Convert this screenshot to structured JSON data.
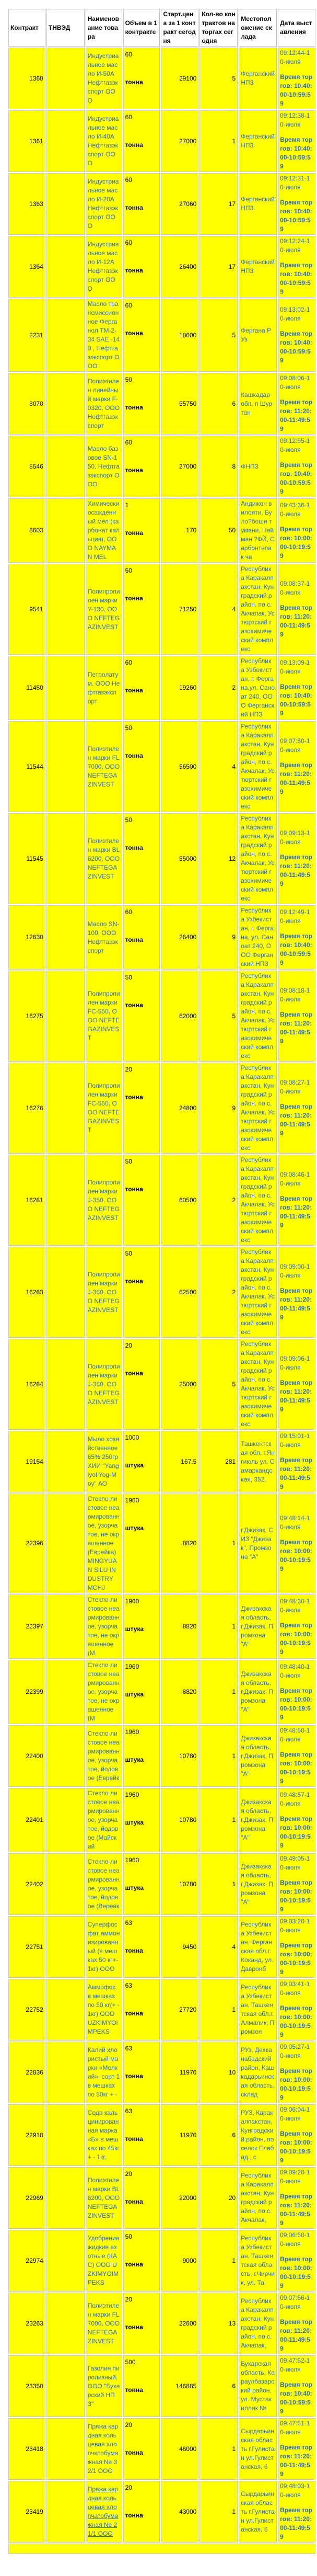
{
  "colors": {
    "cell_background": "#ffff00",
    "header_background": "#ffffff",
    "link_blue": "#2d6fc2",
    "text": "#000000",
    "grid_border": "#c6c6c6"
  },
  "table": {
    "headers": [
      "Контракт",
      "ТНВЭД",
      "Наименование товара",
      "Объем в 1 контракте",
      "Старт.цена за 1 контракт сегодня",
      "Кол-во контрактов на торгах сегодня",
      "Местоположение склада",
      "Дата выставления"
    ],
    "trading_time_label": "Время торгов:",
    "rows": [
      {
        "contract": "1360",
        "tnved": "",
        "name": "Индустриальное масло И-50А Нефтгазэкспорт ООО",
        "volume": "60",
        "unit": "тонна",
        "price": "29100",
        "qty": "5",
        "location": "Ферганский НПЗ",
        "listed": "09:12:44-10-июля",
        "hours": "10:40:00-10:59:59"
      },
      {
        "contract": "1361",
        "tnved": "",
        "name": "Индустриальное масло И-40А Нефтгазэкспорт ООО",
        "volume": "60",
        "unit": "тонна",
        "price": "27000",
        "qty": "1",
        "location": "Ферганский НПЗ",
        "listed": "09:12:38-10-июля",
        "hours": "10:40:00-10:59:59"
      },
      {
        "contract": "1363",
        "tnved": "",
        "name": "Индустриальное масло И-20А Нефтгазэкспорт ООО",
        "volume": "60",
        "unit": "тонна",
        "price": "27060",
        "qty": "17",
        "location": "Ферганский НПЗ",
        "listed": "09:12:31-10-июля",
        "hours": "10:40:00-10:59:59"
      },
      {
        "contract": "1364",
        "tnved": "",
        "name": "Индустриальное масло И-12А Нефтгазэкспорт ООО",
        "volume": "60",
        "unit": "тонна",
        "price": "26400",
        "qty": "17",
        "location": "Ферганский НПЗ",
        "listed": "09:12:24-10-июля",
        "hours": "10:40:00-10:59:59"
      },
      {
        "contract": "2231",
        "tnved": "",
        "name": "Масло трансмиссионное Ферганол ТМ-2-34 SAE -140 , Нефтгазэкспорт ООО",
        "volume": "60",
        "unit": "тонна",
        "price": "18600",
        "qty": "5",
        "location": "Фергана Р Уз",
        "listed": "09:13:02-10-июля",
        "hours": "10:40:00-10:59:59"
      },
      {
        "contract": "3070",
        "tnved": "",
        "name": "Полиэтилен линейный марки F-0320, ООО Нефтгазэкспорт",
        "volume": "50",
        "unit": "тонна",
        "price": "55750",
        "qty": "6",
        "location": "Кашкадар обл, п Шуртан",
        "listed": "09:08:06-10-июля",
        "hours": "11:20:00-11:49:59"
      },
      {
        "contract": "5546",
        "tnved": "",
        "name": "Масло базовое SN-150, Нефтгазэкспорт ООО",
        "volume": "60",
        "unit": "тонна",
        "price": "27000",
        "qty": "8",
        "location": "ФНПЗ",
        "listed": "09:12:55-10-июля",
        "hours": "10:40:00-10:59:59"
      },
      {
        "contract": "8603",
        "tnved": "",
        "name": "Химически осажденный мел (карбонат кальция), ООО NAYMAN MEL",
        "volume": "1",
        "unit": "тонна",
        "price": "170",
        "qty": "50",
        "location": "Андижон вилояти, Було?боши тумани, Найман ?ФЙ, Сарбонтепа к ча",
        "listed": "09:43:36-10-июля",
        "hours": "10:00:00-10:19:59"
      },
      {
        "contract": "9541",
        "tnved": "",
        "name": "Полипропилен марки Y-130, ООО NEFTEGAZINVEST",
        "volume": "50",
        "unit": "тонна",
        "price": "71250",
        "qty": "4",
        "location": "Республика Каракалпакстан, Кунградский район, по с.Акчалак, Устюртский газохимический комплекс",
        "listed": "09:08:37-10-июля",
        "hours": "11:20:00-11:49:59"
      },
      {
        "contract": "11450",
        "tnved": "",
        "name": "Петролатум, ООО Нефтгазэкспорт",
        "volume": "60",
        "unit": "тонна",
        "price": "19260",
        "qty": "2",
        "location": "Республика Узбекистан, г. Фергана,ул. Саноат 240, ООО Ферганский НПЗ",
        "listed": "09:13:09-10-июля",
        "hours": "10:40:00-10:59:59"
      },
      {
        "contract": "11544",
        "tnved": "",
        "name": "Полиэтилен марки FL7000, ООО NEFTEGAZINVEST",
        "volume": "50",
        "unit": "тонна",
        "price": "56500",
        "qty": "4",
        "location": "Республика Каракалпакстан, Кунградский район, по с.Акчалак, Устюртский газохимический комплекс",
        "listed": "09:07:50-10-июля",
        "hours": "11:20:00-11:49:59"
      },
      {
        "contract": "11545",
        "tnved": "",
        "name": "Полиэтилен марки BL6200, ООО NEFTEGAZINVEST",
        "volume": "50",
        "unit": "тонна",
        "price": "55000",
        "qty": "12",
        "location": "Республика Каракалпакстан, Кунградский район, по с.Акчалак, Устюртский газохимический комплекс",
        "listed": "09:09:13-10-июля",
        "hours": "11:20:00-11:49:59"
      },
      {
        "contract": "12630",
        "tnved": "",
        "name": "Масло SN-100, ООО Нефтгазэкспорт",
        "volume": "60",
        "unit": "тонна",
        "price": "26400",
        "qty": "9",
        "location": "Республика Узбекистан, г. Фергана, ул. Саноат 240, ООО Ферганский НПЗ",
        "listed": "09:12:49-10-июля",
        "hours": "10:40:00-10:59:59"
      },
      {
        "contract": "16275",
        "tnved": "",
        "name": "Полипропилен марки FC-550, ООО NEFTEGAZINVEST",
        "volume": "50",
        "unit": "тонна",
        "price": "62000",
        "qty": "5",
        "location": "Республика Каракалпакстан, Кунградский район, по с. Акчалак, Устюртский газохимический комплекс",
        "listed": "09:08:18-10-июля",
        "hours": "11:20:00-11:49:59"
      },
      {
        "contract": "16276",
        "tnved": "",
        "name": "Полипропилен марки FC-550, ООО NEFTEGAZINVEST",
        "volume": "20",
        "unit": "тонна",
        "price": "24800",
        "qty": "9",
        "location": "Республика Каракалпакстан, Кунградский район, по с. Акчалак, Устюртский газохимический комплекс",
        "listed": "09:08:27-10-июля",
        "hours": "11:20:00-11:49:59"
      },
      {
        "contract": "16281",
        "tnved": "",
        "name": "Полипропилен марки J-350, ООО NEFTEGAZINVEST",
        "volume": "50",
        "unit": "тонна",
        "price": "60500",
        "qty": "2",
        "location": "Республика Каракалпакстан, Кунградский район, по с. Акчалак, Устюртский газохимический комплекс",
        "listed": "09:08:46-10-июля",
        "hours": "11:20:00-11:49:59"
      },
      {
        "contract": "16283",
        "tnved": "",
        "name": "Полипропилен марки J-360, ООО NEFTEGAZINVEST",
        "volume": "50",
        "unit": "тонна",
        "price": "62500",
        "qty": "2",
        "location": "Республика Каракалпакстан, Кунградский район, по с. Акчалак, Устюртский газохимический комплекс",
        "listed": "09:09:00-10-июля",
        "hours": "11:20:00-11:49:59"
      },
      {
        "contract": "16284",
        "tnved": "",
        "name": "Полипропилен марки J-360, ООО NEFTEGAZINVEST",
        "volume": "20",
        "unit": "тонна",
        "price": "25000",
        "qty": "5",
        "location": "Республика Каракалпакстан, Кунградский район, по с. Акчалак, Устюртский газохимический комплекс",
        "listed": "09:09:06-10-июля",
        "hours": "11:20:00-11:49:59"
      },
      {
        "contract": "19154",
        "tnved": "",
        "name": "Мыло хозяйственное 65% 250гр ХИИ \"Yangiyol Yog-Moy\" АО",
        "volume": "1000",
        "unit": "штука",
        "price": "167.5",
        "qty": "281",
        "location": "Ташкентская обл. г.Янгиюль ул. Самаркандская, 352.",
        "listed": "09:15:01-10-июля",
        "hours": "11:20:00-11:49:59"
      },
      {
        "contract": "22396",
        "tnved": "",
        "name": "Стекло листовое неармированное, узорчатое, не окрашенное (Еврейка) MINGYUAN SILU INDUSTRY MCHJ",
        "volume": "1960",
        "unit": "штука",
        "price": "8820",
        "qty": "1",
        "location": "г.Джизак, СИЗ \"Джизак\", Промзона \"А\"",
        "listed": "09:48:14-10-июля",
        "hours": "10:00:00-10:19:59"
      },
      {
        "contract": "22397",
        "tnved": "",
        "name": "Стекло листовое неармированное, узорчатое, не окрашенное (М",
        "volume": "1960",
        "unit": "штука",
        "price": "8820",
        "qty": "1",
        "location": "Джизакская область, г.Джизак, Промзона \"А\"",
        "listed": "09:48:30-10-июля",
        "hours": "10:00:00-10:19:59"
      },
      {
        "contract": "22399",
        "tnved": "",
        "name": "Стекло листовое неармированное, узорчатое, не окрашенное (М",
        "volume": "1960",
        "unit": "штука",
        "price": "8820",
        "qty": "1",
        "location": "Джизакская область, г.Джизак, Промзона \"А\"",
        "listed": "09:48:40-10-июля",
        "hours": "10:00:00-10:19:59"
      },
      {
        "contract": "22400",
        "tnved": "",
        "name": "Стекло листовое неармированное, узорчатое, йодовое (Еврейк",
        "volume": "1960",
        "unit": "штука",
        "price": "10780",
        "qty": "1",
        "location": "Джизакская область, г.Джизак, Промзона \"А\"",
        "listed": "09:48:50-10-июля",
        "hours": "10:00:00-10:19:59"
      },
      {
        "contract": "22401",
        "tnved": "",
        "name": "Стекло листовое неармированное, узорчатое, йодовое (Майский",
        "volume": "1960",
        "unit": "штука",
        "price": "10780",
        "qty": "1",
        "location": "Джизакская область, г.Джизак, Промзона \"А\"",
        "listed": "09:48:57-10-июля",
        "hours": "10:00:00-10:19:59"
      },
      {
        "contract": "22402",
        "tnved": "",
        "name": "Стекло листовое неармированное, узорчатое, йодовое (Веревк",
        "volume": "1960",
        "unit": "штука",
        "price": "10780",
        "qty": "1",
        "location": "Джизакская область, г.Джизак, Промзона \"А\"",
        "listed": "09:49:05-10-июля",
        "hours": "10:00:00-10:19:59"
      },
      {
        "contract": "22751",
        "tnved": "",
        "name": "Суперфосфат аммонизированный (в мешках 50 кг+- 1кг) ООО",
        "volume": "63",
        "unit": "тонна",
        "price": "9450",
        "qty": "4",
        "location": "Республика Узбекистан, Ферганская обл.г. Коканд, ул.Давронб",
        "listed": "09:03:20-10-июля",
        "hours": "10:00:00-10:19:59"
      },
      {
        "contract": "22752",
        "tnved": "",
        "name": "Аммофос в мешках по 50 кг(+ - 1кг) ООО UZKIMYOIMPEKS",
        "volume": "63",
        "unit": "тонна",
        "price": "27720",
        "qty": "1",
        "location": "Республика Узбекистан, Ташкентская обл.г.Алмалик, Промзон",
        "listed": "09:03:41-10-июля",
        "hours": "10:00:00-10:19:59"
      },
      {
        "contract": "22836",
        "tnved": "",
        "name": "Калий хлористый марки «Мелкий», сорт 1 в мешках по 50кг + -",
        "volume": "63",
        "unit": "тонна",
        "price": "11970",
        "qty": "10",
        "location": "РУз, Дехканабадский район, Кашкадарьинская область, склад",
        "listed": "09:05:27-10-июля",
        "hours": "10:00:00-10:19:59"
      },
      {
        "contract": "22918",
        "tnved": "",
        "name": "Сода кальцинированная марка «Б» в мешках по 45кг + - 1кг,",
        "volume": "63",
        "unit": "тонна",
        "price": "11970",
        "qty": "6",
        "location": "РУЗ, Каракалпакстан, Кунградский район, поселок Елабад., с",
        "listed": "09:06:04-10-июля",
        "hours": "10:00:00-10:19:59"
      },
      {
        "contract": "22969",
        "tnved": "",
        "name": "Полиэтилен марки BL6200, ООО NEFTEGAZINVEST",
        "volume": "20",
        "unit": "тонна",
        "price": "22000",
        "qty": "20",
        "location": "Республика Каракалпакстан, Кунградский район, по с.Акчалак,",
        "listed": "09:09:20-10-июля",
        "hours": "11:20:00-11:49:59"
      },
      {
        "contract": "22974",
        "tnved": "",
        "name": "Удобрения жидкие азотные (КАС) ООО UZKIMYOIMPEKS",
        "volume": "50",
        "unit": "тонна",
        "price": "9000",
        "qty": "1",
        "location": "Республика Узбекистан, Ташкентская область, г.Чирчик, ул. Та",
        "listed": "09:06:50-10-июля",
        "hours": "10:00:00-10:19:59"
      },
      {
        "contract": "23263",
        "tnved": "",
        "name": "Полиэтилен марки FL7000, ООО NEFTEGAZINVEST",
        "volume": "20",
        "unit": "тонна",
        "price": "22600",
        "qty": "13",
        "location": "Республика Каракалпакстан, Кунградский район, по с.Акчалак,",
        "listed": "09:07:56-10-июля",
        "hours": "11:20:00-11:49:59"
      },
      {
        "contract": "23350",
        "tnved": "",
        "name": "Газолин пиролизный, ООО \"Бухарский НПЗ\"",
        "volume": "500",
        "unit": "тонна",
        "price": "146885",
        "qty": "6",
        "location": "Бухарская область, Караулбазарский район, ул. Мустакиллик №",
        "listed": "09:47:52-10-июля",
        "hours": "10:40:00-10:59:59"
      },
      {
        "contract": "23418",
        "tnved": "",
        "name": "Пряжа кардная кольцевая хлопчатобумажная Ne 32/1 ООО",
        "volume": "20",
        "unit": "тонна",
        "price": "46000",
        "qty": "1",
        "location": "Сырдарьинская область г.Гулистан ул.Гулистанская, 6",
        "listed": "09:47:51-10-июля",
        "hours": "11:20:00-11:49:59"
      },
      {
        "contract": "23419",
        "tnved": "",
        "name": "Пряжа кардная кольцевая хлопчатобумажная Ne 21/1 ООО",
        "underline": true,
        "volume": "20",
        "unit": "тонна",
        "price": "43000",
        "qty": "1",
        "location": "Сырдарьинская область г.Гулистан ул.Гулистанская, 6",
        "listed": "09:48:03-10-июля",
        "hours": "11:20:00-11:49:59"
      }
    ]
  }
}
